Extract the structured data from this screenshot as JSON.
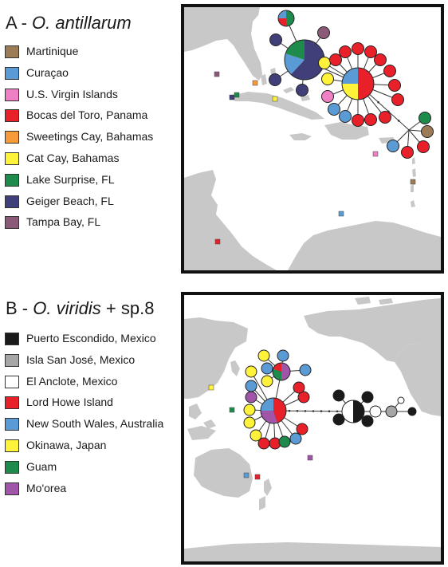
{
  "colors": {
    "land": "#c8c8c8",
    "water": "#ffffff",
    "frame": "#111111",
    "edge": "#333333"
  },
  "panel_a": {
    "letter": "A  -  ",
    "species": "O. antillarum",
    "legend": [
      {
        "label": "Martinique",
        "color": "#9b7c56"
      },
      {
        "label": "Curaçao",
        "color": "#5b9bd5"
      },
      {
        "label": "U.S. Virgin Islands",
        "color": "#f080c4"
      },
      {
        "label": "Bocas del Toro, Panama",
        "color": "#e8202a"
      },
      {
        "label": "Sweetings Cay, Bahamas",
        "color": "#f79a3a"
      },
      {
        "label": "Cat Cay, Bahamas",
        "color": "#fff23a"
      },
      {
        "label": "Lake Surprise, FL",
        "color": "#1e8a4c"
      },
      {
        "label": "Geiger Beach, FL",
        "color": "#403f7a"
      },
      {
        "label": "Tampa Bay, FL",
        "color": "#8a5a78"
      }
    ]
  },
  "panel_b": {
    "letter": "B  -  ",
    "species": "O. viridis",
    "suffix": " + sp.8",
    "legend": [
      {
        "label": "Puerto Escondido, Mexico",
        "color": "#1a1a1a"
      },
      {
        "label": "Isla San José, Mexico",
        "color": "#a6a6a6"
      },
      {
        "label": "El Anclote, Mexico",
        "color": "#ffffff"
      },
      {
        "label": "Lord Howe Island",
        "color": "#e8202a"
      },
      {
        "label": "New South Wales, Australia",
        "color": "#5b9bd5"
      },
      {
        "label": "Okinawa, Japan",
        "color": "#fff23a"
      },
      {
        "label": "Guam",
        "color": "#1e8a4c"
      },
      {
        "label": "Mo'orea",
        "color": "#a055a8"
      }
    ]
  }
}
